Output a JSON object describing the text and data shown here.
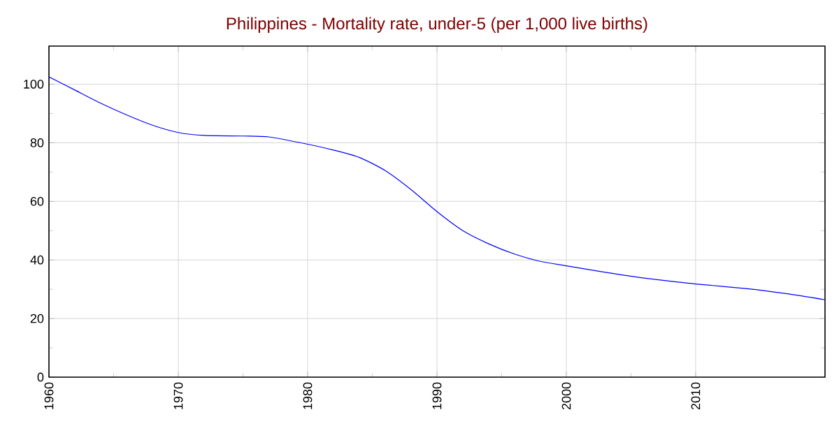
{
  "chart_data": {
    "type": "line",
    "title": "Philippines - Mortality rate, under-5 (per 1,000 live births)",
    "x": [
      1960,
      1962,
      1964,
      1966,
      1968,
      1970,
      1972,
      1975,
      1977,
      1980,
      1982,
      1984,
      1986,
      1988,
      1990,
      1992,
      1994,
      1996,
      1998,
      2000,
      2003,
      2006,
      2010,
      2014,
      2017,
      2020
    ],
    "series": [
      {
        "color": "#0000ff",
        "values": [
          102.5,
          98,
          93.5,
          89.5,
          86,
          83.5,
          82.5,
          82.3,
          82,
          79.5,
          77.5,
          75,
          70.5,
          64,
          56.5,
          50,
          45.5,
          42,
          39.5,
          38,
          35.8,
          33.8,
          31.8,
          30.2,
          28.5,
          26.4
        ]
      }
    ],
    "xlim": [
      1960,
      2020
    ],
    "ylim": [
      0,
      113
    ],
    "xticks": [
      1960,
      1970,
      1980,
      1990,
      2000,
      2010
    ],
    "yticks": [
      0,
      20,
      40,
      60,
      80,
      100
    ],
    "grid": true,
    "marker": "none",
    "line_style": "solid"
  }
}
